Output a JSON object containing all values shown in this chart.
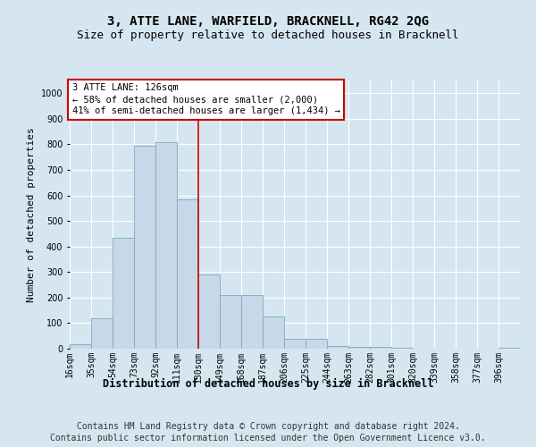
{
  "title": "3, ATTE LANE, WARFIELD, BRACKNELL, RG42 2QG",
  "subtitle": "Size of property relative to detached houses in Bracknell",
  "xlabel": "Distribution of detached houses by size in Bracknell",
  "ylabel": "Number of detached properties",
  "bin_labels": [
    "16sqm",
    "35sqm",
    "54sqm",
    "73sqm",
    "92sqm",
    "111sqm",
    "130sqm",
    "149sqm",
    "168sqm",
    "187sqm",
    "206sqm",
    "225sqm",
    "244sqm",
    "263sqm",
    "282sqm",
    "301sqm",
    "320sqm",
    "339sqm",
    "358sqm",
    "377sqm",
    "396sqm"
  ],
  "bin_left_edges": [
    16,
    35,
    54,
    73,
    92,
    111,
    130,
    149,
    168,
    187,
    206,
    225,
    244,
    263,
    282,
    301,
    320,
    339,
    358,
    377,
    396
  ],
  "bar_heights": [
    18,
    120,
    435,
    795,
    810,
    585,
    290,
    210,
    210,
    125,
    40,
    40,
    12,
    8,
    6,
    3,
    0,
    0,
    0,
    0,
    5
  ],
  "bar_color": "#c5d9e8",
  "bar_edge_color": "#7aaabf",
  "property_line_x": 130,
  "property_line_color": "#cc0000",
  "ylim": [
    0,
    1050
  ],
  "yticks": [
    0,
    100,
    200,
    300,
    400,
    500,
    600,
    700,
    800,
    900,
    1000
  ],
  "annotation_text": "3 ATTE LANE: 126sqm\n← 58% of detached houses are smaller (2,000)\n41% of semi-detached houses are larger (1,434) →",
  "annotation_box_color": "#ffffff",
  "annotation_box_edge": "#cc0000",
  "footer_line1": "Contains HM Land Registry data © Crown copyright and database right 2024.",
  "footer_line2": "Contains public sector information licensed under the Open Government Licence v3.0.",
  "bg_color": "#d6e6f0",
  "plot_bg_color": "#d6e6f0",
  "grid_color": "#ffffff",
  "title_fontsize": 10,
  "subtitle_fontsize": 9,
  "xlabel_fontsize": 8.5,
  "ylabel_fontsize": 8,
  "footer_fontsize": 7,
  "tick_fontsize": 7,
  "annot_fontsize": 7.5
}
